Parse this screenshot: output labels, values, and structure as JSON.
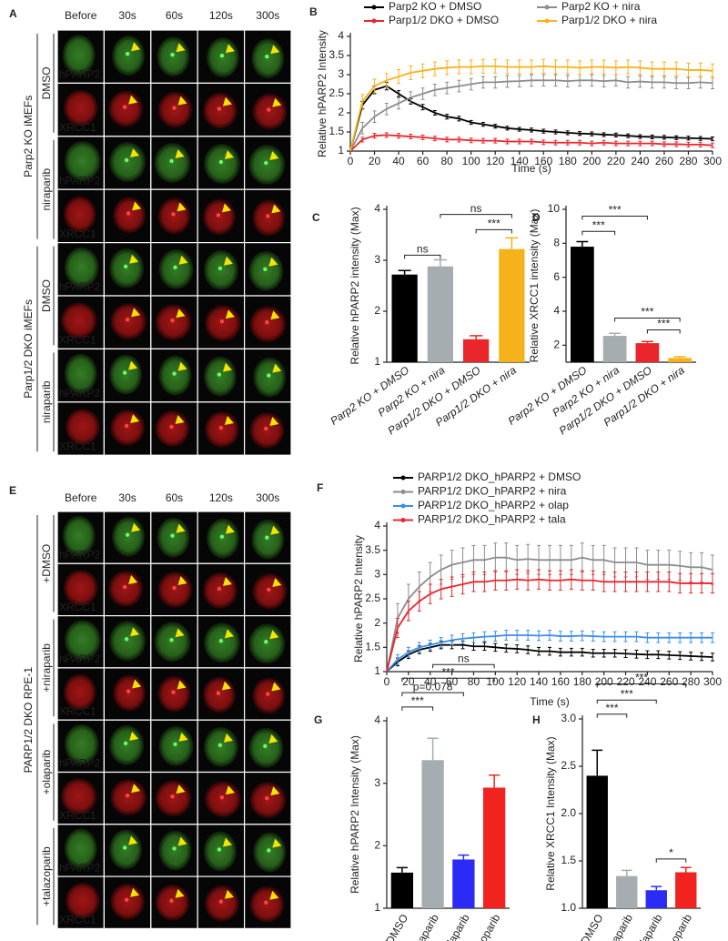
{
  "image_panels": [
    {
      "panel": "A",
      "columns": [
        "Before",
        "30s",
        "60s",
        "120s",
        "300s"
      ],
      "row_labels": [
        "hPARP2",
        "XRCC1",
        "hPARP2",
        "XRCC1",
        "hPARP2",
        "XRCC1",
        "hPARP2",
        "XRCC1"
      ],
      "conditions": [
        "DMSO",
        "niraparib",
        "DMSO",
        "niraparib"
      ],
      "groups": [
        "Parp2 KO iMEFs",
        "Parp1/2 DKO iMEFs"
      ]
    },
    {
      "panel": "E",
      "columns": [
        "Before",
        "30s",
        "60s",
        "120s",
        "300s"
      ],
      "row_labels": [
        "hPARP2",
        "XRCC1",
        "hPARP2",
        "XRCC1",
        "hPARP2",
        "XRCC1",
        "hPARP2",
        "XRCC1"
      ],
      "conditions": [
        "+DMSO",
        "+niraparib",
        "+olaparib",
        "+talazoparib"
      ],
      "groups": [
        "PARP1/2 DKO RPE-1"
      ]
    }
  ],
  "chart_data": [
    {
      "type": "line",
      "panel": "B",
      "xlabel": "Time (s)",
      "ylabel": "Relative hPARP2 Intensity",
      "x": [
        0,
        10,
        20,
        30,
        40,
        50,
        60,
        70,
        80,
        90,
        100,
        110,
        120,
        130,
        140,
        150,
        160,
        170,
        180,
        190,
        200,
        210,
        220,
        230,
        240,
        250,
        260,
        270,
        280,
        290,
        300
      ],
      "xlim": [
        0,
        300
      ],
      "xticks": [
        0,
        20,
        40,
        60,
        80,
        100,
        120,
        140,
        160,
        180,
        200,
        220,
        240,
        260,
        280,
        300
      ],
      "ylim": [
        1,
        4
      ],
      "yticks": [
        1,
        1.5,
        2,
        2.5,
        3,
        3.5,
        4
      ],
      "series": [
        {
          "name": "Parp2 KO + DMSO",
          "color": "#000000",
          "values": [
            1,
            2.2,
            2.6,
            2.7,
            2.5,
            2.3,
            2.15,
            2.0,
            1.9,
            1.85,
            1.75,
            1.7,
            1.65,
            1.6,
            1.57,
            1.55,
            1.52,
            1.5,
            1.48,
            1.46,
            1.45,
            1.43,
            1.42,
            1.4,
            1.38,
            1.37,
            1.36,
            1.35,
            1.34,
            1.33,
            1.32
          ],
          "errors": [
            0,
            0.1,
            0.1,
            0.1,
            0.08,
            0.07,
            0.07,
            0.06,
            0.06,
            0.06,
            0.05,
            0.05,
            0.05,
            0.05,
            0.05,
            0.05,
            0.05,
            0.05,
            0.05,
            0.05,
            0.05,
            0.05,
            0.05,
            0.05,
            0.05,
            0.05,
            0.05,
            0.05,
            0.05,
            0.05,
            0.05
          ]
        },
        {
          "name": "Parp2 KO + nira",
          "color": "#8c8c8c",
          "values": [
            1,
            1.6,
            1.9,
            2.1,
            2.25,
            2.4,
            2.5,
            2.6,
            2.65,
            2.7,
            2.75,
            2.8,
            2.8,
            2.82,
            2.83,
            2.85,
            2.85,
            2.85,
            2.83,
            2.85,
            2.85,
            2.83,
            2.85,
            2.8,
            2.82,
            2.8,
            2.8,
            2.78,
            2.78,
            2.8,
            2.78
          ],
          "errors": [
            0,
            0.15,
            0.15,
            0.15,
            0.15,
            0.15,
            0.15,
            0.15,
            0.15,
            0.15,
            0.15,
            0.15,
            0.15,
            0.15,
            0.15,
            0.15,
            0.15,
            0.15,
            0.15,
            0.15,
            0.15,
            0.15,
            0.15,
            0.15,
            0.15,
            0.15,
            0.15,
            0.15,
            0.15,
            0.15,
            0.15
          ]
        },
        {
          "name": "Parp1/2 DKO + DMSO",
          "color": "#e8262b",
          "values": [
            1,
            1.3,
            1.4,
            1.42,
            1.4,
            1.38,
            1.36,
            1.33,
            1.3,
            1.3,
            1.28,
            1.27,
            1.27,
            1.25,
            1.25,
            1.25,
            1.23,
            1.22,
            1.22,
            1.22,
            1.2,
            1.22,
            1.2,
            1.2,
            1.2,
            1.2,
            1.18,
            1.18,
            1.17,
            1.17,
            1.15
          ],
          "errors": [
            0,
            0.06,
            0.06,
            0.06,
            0.06,
            0.06,
            0.06,
            0.06,
            0.06,
            0.06,
            0.06,
            0.06,
            0.06,
            0.06,
            0.06,
            0.06,
            0.06,
            0.06,
            0.06,
            0.06,
            0.06,
            0.06,
            0.06,
            0.06,
            0.06,
            0.06,
            0.06,
            0.06,
            0.06,
            0.06,
            0.06
          ]
        },
        {
          "name": "Parp1/2 DKO + nira",
          "color": "#f6b21b",
          "values": [
            1,
            2.3,
            2.7,
            2.85,
            2.95,
            3.05,
            3.1,
            3.15,
            3.18,
            3.2,
            3.2,
            3.22,
            3.22,
            3.2,
            3.2,
            3.2,
            3.22,
            3.2,
            3.2,
            3.18,
            3.2,
            3.2,
            3.18,
            3.2,
            3.18,
            3.15,
            3.15,
            3.15,
            3.12,
            3.12,
            3.1
          ],
          "errors": [
            0,
            0.18,
            0.18,
            0.18,
            0.18,
            0.18,
            0.18,
            0.18,
            0.18,
            0.18,
            0.18,
            0.18,
            0.18,
            0.18,
            0.18,
            0.18,
            0.18,
            0.18,
            0.18,
            0.18,
            0.18,
            0.18,
            0.18,
            0.18,
            0.18,
            0.18,
            0.18,
            0.18,
            0.18,
            0.18,
            0.18
          ]
        }
      ]
    },
    {
      "type": "bar",
      "panel": "C",
      "ylabel": "Relative hPARP2 intensity (Max)",
      "categories": [
        "Parp2 KO + DMSO",
        "Parp2 KO + nira",
        "Parp1/2 DKO + DMSO",
        "Parp1/2 DKO + nira"
      ],
      "values": [
        2.72,
        2.88,
        1.45,
        3.22
      ],
      "errors": [
        0.08,
        0.13,
        0.07,
        0.22
      ],
      "colors": [
        "#000000",
        "#a6adb0",
        "#e8262b",
        "#f6b21b"
      ],
      "ylim": [
        1,
        4
      ],
      "yticks": [
        1,
        2,
        3,
        4
      ],
      "significance": [
        "ns",
        "***",
        "ns"
      ]
    },
    {
      "type": "bar",
      "panel": "D",
      "ylabel": "Relative XRCC1 intensity (Max)",
      "categories": [
        "Parp2 KO + DMSO",
        "Parp2 KO + nira",
        "Parp1/2 DKO + DMSO",
        "Parp1/2 DKO + nira"
      ],
      "values": [
        7.8,
        2.55,
        2.12,
        1.25
      ],
      "errors": [
        0.3,
        0.15,
        0.1,
        0.08
      ],
      "colors": [
        "#000000",
        "#a6adb0",
        "#e8262b",
        "#f6b21b"
      ],
      "ylim": [
        1,
        10
      ],
      "yticks": [
        2,
        4,
        6,
        8,
        10
      ],
      "significance": [
        "***",
        "***",
        "***",
        "***"
      ]
    },
    {
      "type": "line",
      "panel": "F",
      "xlabel": "Time (s)",
      "ylabel": "Relative hPARP2 Intensity",
      "x": [
        0,
        10,
        20,
        30,
        40,
        50,
        60,
        70,
        80,
        90,
        100,
        110,
        120,
        130,
        140,
        150,
        160,
        170,
        180,
        190,
        200,
        210,
        220,
        230,
        240,
        250,
        260,
        270,
        280,
        290,
        300
      ],
      "xlim": [
        0,
        300
      ],
      "xticks": [
        0,
        20,
        40,
        60,
        80,
        100,
        120,
        140,
        160,
        180,
        200,
        220,
        240,
        260,
        280,
        300
      ],
      "ylim": [
        1,
        4
      ],
      "yticks": [
        1,
        1.5,
        2,
        2.5,
        3,
        3.5,
        4
      ],
      "series": [
        {
          "name": "PARP1/2 DKO_hPARP2 + DMSO",
          "color": "#000000",
          "values": [
            1,
            1.2,
            1.35,
            1.45,
            1.5,
            1.55,
            1.55,
            1.55,
            1.52,
            1.52,
            1.5,
            1.48,
            1.47,
            1.45,
            1.42,
            1.42,
            1.4,
            1.4,
            1.4,
            1.38,
            1.38,
            1.38,
            1.37,
            1.36,
            1.35,
            1.35,
            1.34,
            1.33,
            1.32,
            1.31,
            1.3
          ],
          "errors": [
            0,
            0.08,
            0.08,
            0.08,
            0.08,
            0.08,
            0.08,
            0.08,
            0.08,
            0.08,
            0.08,
            0.08,
            0.08,
            0.08,
            0.08,
            0.08,
            0.08,
            0.08,
            0.08,
            0.08,
            0.08,
            0.08,
            0.08,
            0.08,
            0.08,
            0.08,
            0.08,
            0.08,
            0.08,
            0.08,
            0.08
          ]
        },
        {
          "name": "PARP1/2 DKO_hPARP2 + nira",
          "color": "#8c8c8c",
          "values": [
            1,
            2.1,
            2.5,
            2.75,
            2.95,
            3.1,
            3.2,
            3.25,
            3.3,
            3.3,
            3.35,
            3.35,
            3.3,
            3.32,
            3.3,
            3.3,
            3.3,
            3.3,
            3.35,
            3.3,
            3.3,
            3.25,
            3.25,
            3.25,
            3.2,
            3.2,
            3.2,
            3.18,
            3.15,
            3.15,
            3.1
          ],
          "errors": [
            0,
            0.3,
            0.3,
            0.3,
            0.3,
            0.3,
            0.3,
            0.3,
            0.3,
            0.3,
            0.3,
            0.3,
            0.3,
            0.3,
            0.3,
            0.3,
            0.3,
            0.3,
            0.3,
            0.3,
            0.3,
            0.3,
            0.3,
            0.3,
            0.3,
            0.3,
            0.3,
            0.3,
            0.3,
            0.3,
            0.3
          ]
        },
        {
          "name": "PARP1/2 DKO_hPARP2 + olap",
          "color": "#3d8ee6",
          "values": [
            1,
            1.25,
            1.4,
            1.5,
            1.55,
            1.6,
            1.65,
            1.68,
            1.7,
            1.72,
            1.73,
            1.75,
            1.75,
            1.75,
            1.74,
            1.75,
            1.73,
            1.73,
            1.74,
            1.73,
            1.72,
            1.72,
            1.72,
            1.72,
            1.7,
            1.7,
            1.7,
            1.7,
            1.7,
            1.7,
            1.7
          ],
          "errors": [
            0,
            0.1,
            0.1,
            0.1,
            0.1,
            0.1,
            0.1,
            0.1,
            0.1,
            0.1,
            0.1,
            0.1,
            0.1,
            0.1,
            0.1,
            0.1,
            0.1,
            0.1,
            0.1,
            0.1,
            0.1,
            0.1,
            0.1,
            0.1,
            0.1,
            0.1,
            0.1,
            0.1,
            0.1,
            0.1,
            0.1
          ]
        },
        {
          "name": "PARP1/2 DKO_hPARP2 + tala",
          "color": "#e8262b",
          "values": [
            1,
            1.9,
            2.25,
            2.45,
            2.6,
            2.7,
            2.75,
            2.8,
            2.85,
            2.85,
            2.88,
            2.88,
            2.9,
            2.88,
            2.9,
            2.88,
            2.88,
            2.9,
            2.88,
            2.88,
            2.85,
            2.85,
            2.85,
            2.85,
            2.85,
            2.85,
            2.85,
            2.82,
            2.82,
            2.82,
            2.82
          ],
          "errors": [
            0,
            0.2,
            0.2,
            0.2,
            0.2,
            0.2,
            0.2,
            0.2,
            0.2,
            0.2,
            0.2,
            0.2,
            0.2,
            0.2,
            0.2,
            0.2,
            0.2,
            0.2,
            0.2,
            0.2,
            0.2,
            0.2,
            0.2,
            0.2,
            0.2,
            0.2,
            0.2,
            0.2,
            0.2,
            0.2,
            0.2
          ]
        }
      ]
    },
    {
      "type": "bar",
      "panel": "G",
      "ylabel": "Relative hPARP2 Intensity (Max)",
      "categories": [
        "DMSO",
        "niraparib",
        "olaparib",
        "talazoparib"
      ],
      "values": [
        1.57,
        3.37,
        1.78,
        2.93
      ],
      "errors": [
        0.08,
        0.35,
        0.07,
        0.2
      ],
      "colors": [
        "#000000",
        "#a6adb0",
        "#2b2bf5",
        "#f2231f"
      ],
      "ylim": [
        1,
        4
      ],
      "yticks": [
        1,
        2,
        3,
        4
      ],
      "significance": [
        "***",
        "p=0.078",
        "***",
        "ns"
      ]
    },
    {
      "type": "bar",
      "panel": "H",
      "ylabel": "Relative XRCC1 Intensity (Max)",
      "categories": [
        "DMSO",
        "niraparib",
        "olaparib",
        "talazoparib"
      ],
      "values": [
        2.4,
        1.34,
        1.19,
        1.38
      ],
      "errors": [
        0.27,
        0.06,
        0.04,
        0.05
      ],
      "colors": [
        "#000000",
        "#a6adb0",
        "#2b2bf5",
        "#f2231f"
      ],
      "ylim": [
        1,
        3
      ],
      "yticks": [
        {
          "value": 1,
          "label": "1.0"
        },
        1.5,
        {
          "value": 2,
          "label": "2.0"
        },
        2.5,
        {
          "value": 3,
          "label": "3.0"
        }
      ],
      "significance": [
        "***",
        "***",
        "***",
        "*"
      ]
    }
  ]
}
